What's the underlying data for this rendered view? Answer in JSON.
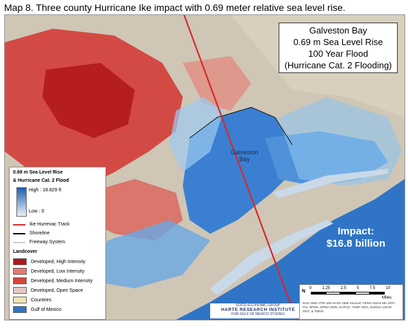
{
  "caption": "Map 8. Three county Hurricane Ike impact with 0.69 meter relative sea level rise.",
  "title_box": {
    "line1": "Galveston Bay",
    "line2": "0.69  m Sea Level Rise",
    "line3": "100 Year Flood",
    "line4": "(Hurricane Cat. 2 Flooding)"
  },
  "bay_label": {
    "line1": "Galveston",
    "line2": "Bay"
  },
  "impact": {
    "line1": "Impact:",
    "line2": "$16.8 billion"
  },
  "legend": {
    "title1": "0.69 m Sea Level Rise",
    "title2": "& Hurricane Cat. 2 Flood",
    "high": "High : 18.829 ft",
    "low": "Low : 0",
    "track": "Ike Hurrevac Track",
    "shoreline": "Shoreline",
    "freeway": "Freeway System",
    "landcover_title": "Landcover",
    "classes": [
      {
        "label": "Developed, High Intensity",
        "color": "#b3161c"
      },
      {
        "label": "Developed, Low Intensity",
        "color": "#e7796f"
      },
      {
        "label": "Developed, Medium Intensity",
        "color": "#d9443a"
      },
      {
        "label": "Developed, Open Space",
        "color": "#e6c8c3"
      },
      {
        "label": "Countries",
        "color": "#f5e3b8"
      },
      {
        "label": "Gulf of Mexico",
        "color": "#2f74c7"
      }
    ],
    "track_color": "#d42a2a"
  },
  "scale": {
    "ticks": [
      "0",
      "1.25",
      "2.5",
      "5",
      "7.5",
      "10"
    ],
    "unit": "Miles",
    "north": "N",
    "notes": "NAD 1983 UTM 15N NAVD 1988 Sources: FEMA Hazus MH 2007, FIS, NPMS, DPWA 2005, HCFCD, TSMP 2003, Sanborn LiDAR 2007, & TNRIS"
  },
  "logo": {
    "top": "SOCIO-ECONOMIC GROUP",
    "main": "HARTE RESEARCH INSTITUTE",
    "sub": "FOR GULF OF MEXICO STUDIES"
  }
}
